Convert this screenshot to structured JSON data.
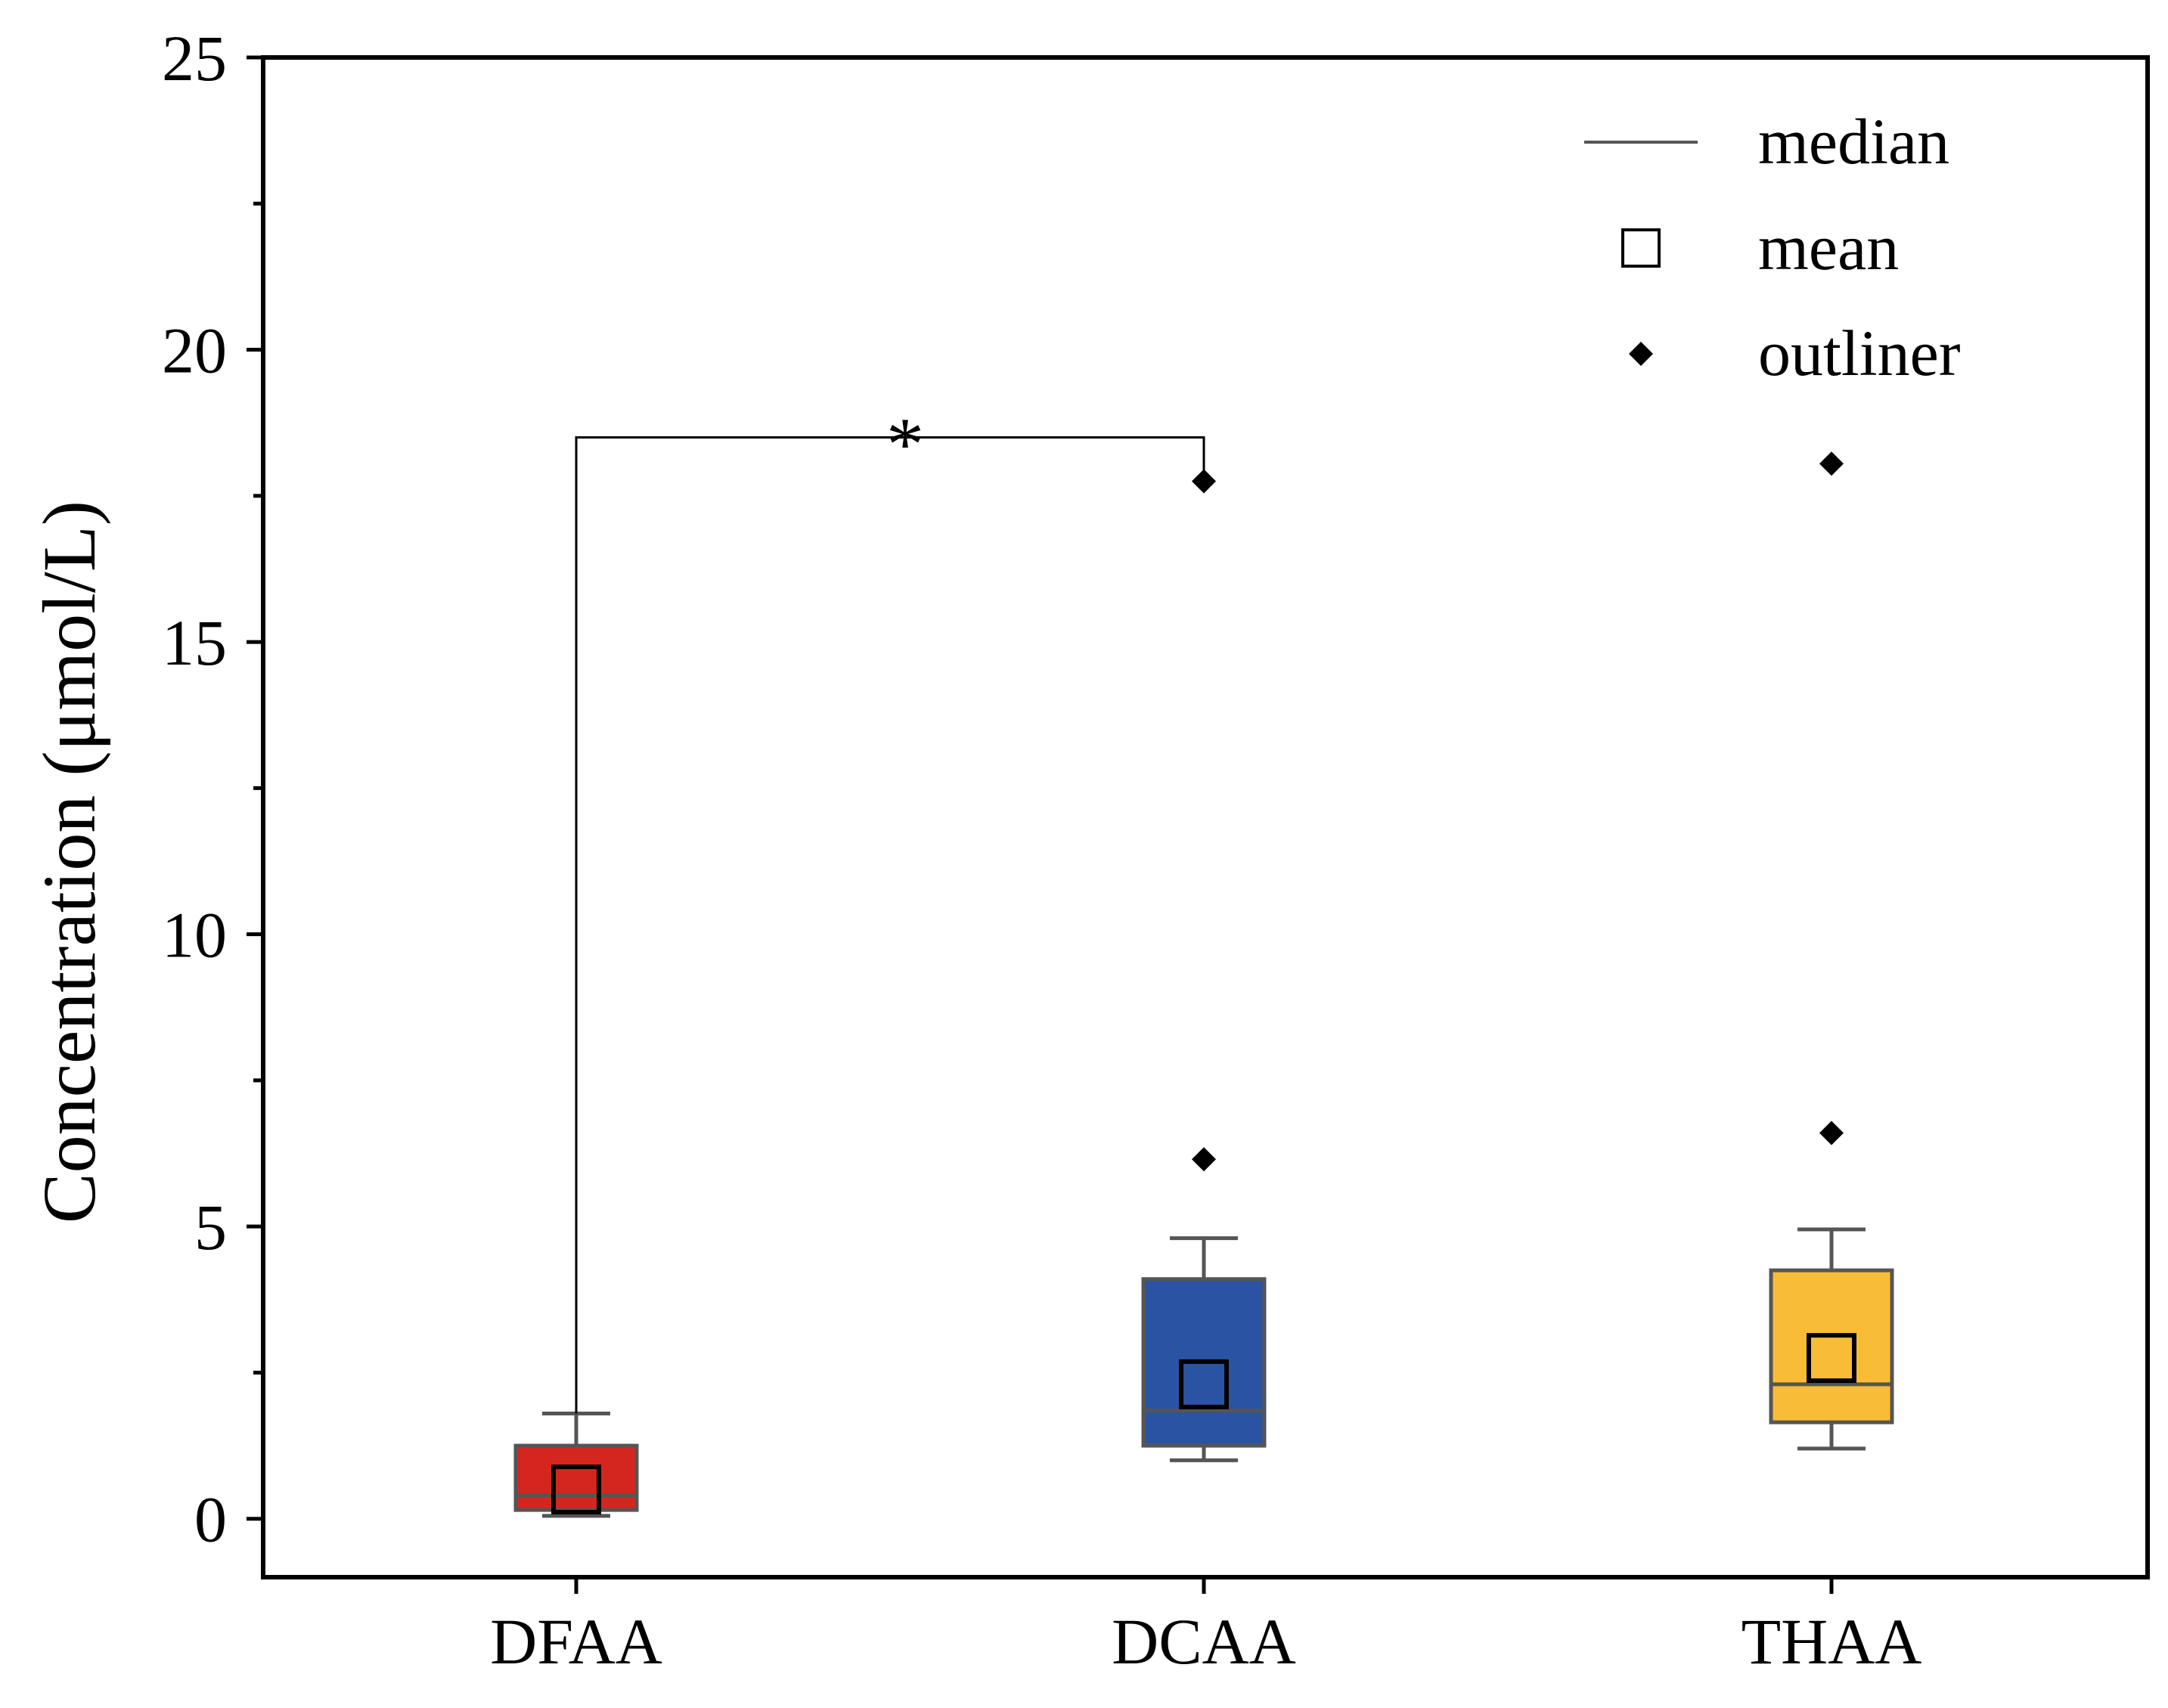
{
  "chart_data": {
    "type": "box",
    "title": "",
    "xlabel": "",
    "ylabel": "Concentration (μmol/L)",
    "ylim": [
      -1,
      25
    ],
    "yticks": [
      0,
      5,
      10,
      15,
      20,
      25
    ],
    "yminor_ticks": [
      2.5,
      7.5,
      12.5,
      17.5,
      22.5
    ],
    "categories": [
      "DFAA",
      "DCAA",
      "THAA"
    ],
    "boxes": [
      {
        "name": "DFAA",
        "color": "#d4261f",
        "whisker_low": 0.05,
        "q1": 0.15,
        "median": 0.4,
        "q3": 1.25,
        "whisker_high": 1.8,
        "mean": 0.5,
        "outliers": []
      },
      {
        "name": "DCAA",
        "color": "#2a54a3",
        "whisker_low": 1.0,
        "q1": 1.25,
        "median": 1.85,
        "q3": 4.1,
        "whisker_high": 4.8,
        "mean": 2.3,
        "outliers": [
          6.15,
          17.75
        ]
      },
      {
        "name": "THAA",
        "color": "#f9bc36",
        "whisker_low": 1.2,
        "q1": 1.65,
        "median": 2.3,
        "q3": 4.25,
        "whisker_high": 4.95,
        "mean": 2.75,
        "outliers": [
          6.6,
          18.05
        ]
      }
    ],
    "significance": [
      {
        "from": "DFAA",
        "to": "DCAA",
        "label": "*",
        "bracket_y": 18.5
      }
    ],
    "legend": {
      "position": "top-right",
      "items": [
        {
          "label": "median",
          "symbol": "line"
        },
        {
          "label": "mean",
          "symbol": "open-square"
        },
        {
          "label": "outliner",
          "symbol": "diamond"
        }
      ]
    },
    "grid": false
  }
}
